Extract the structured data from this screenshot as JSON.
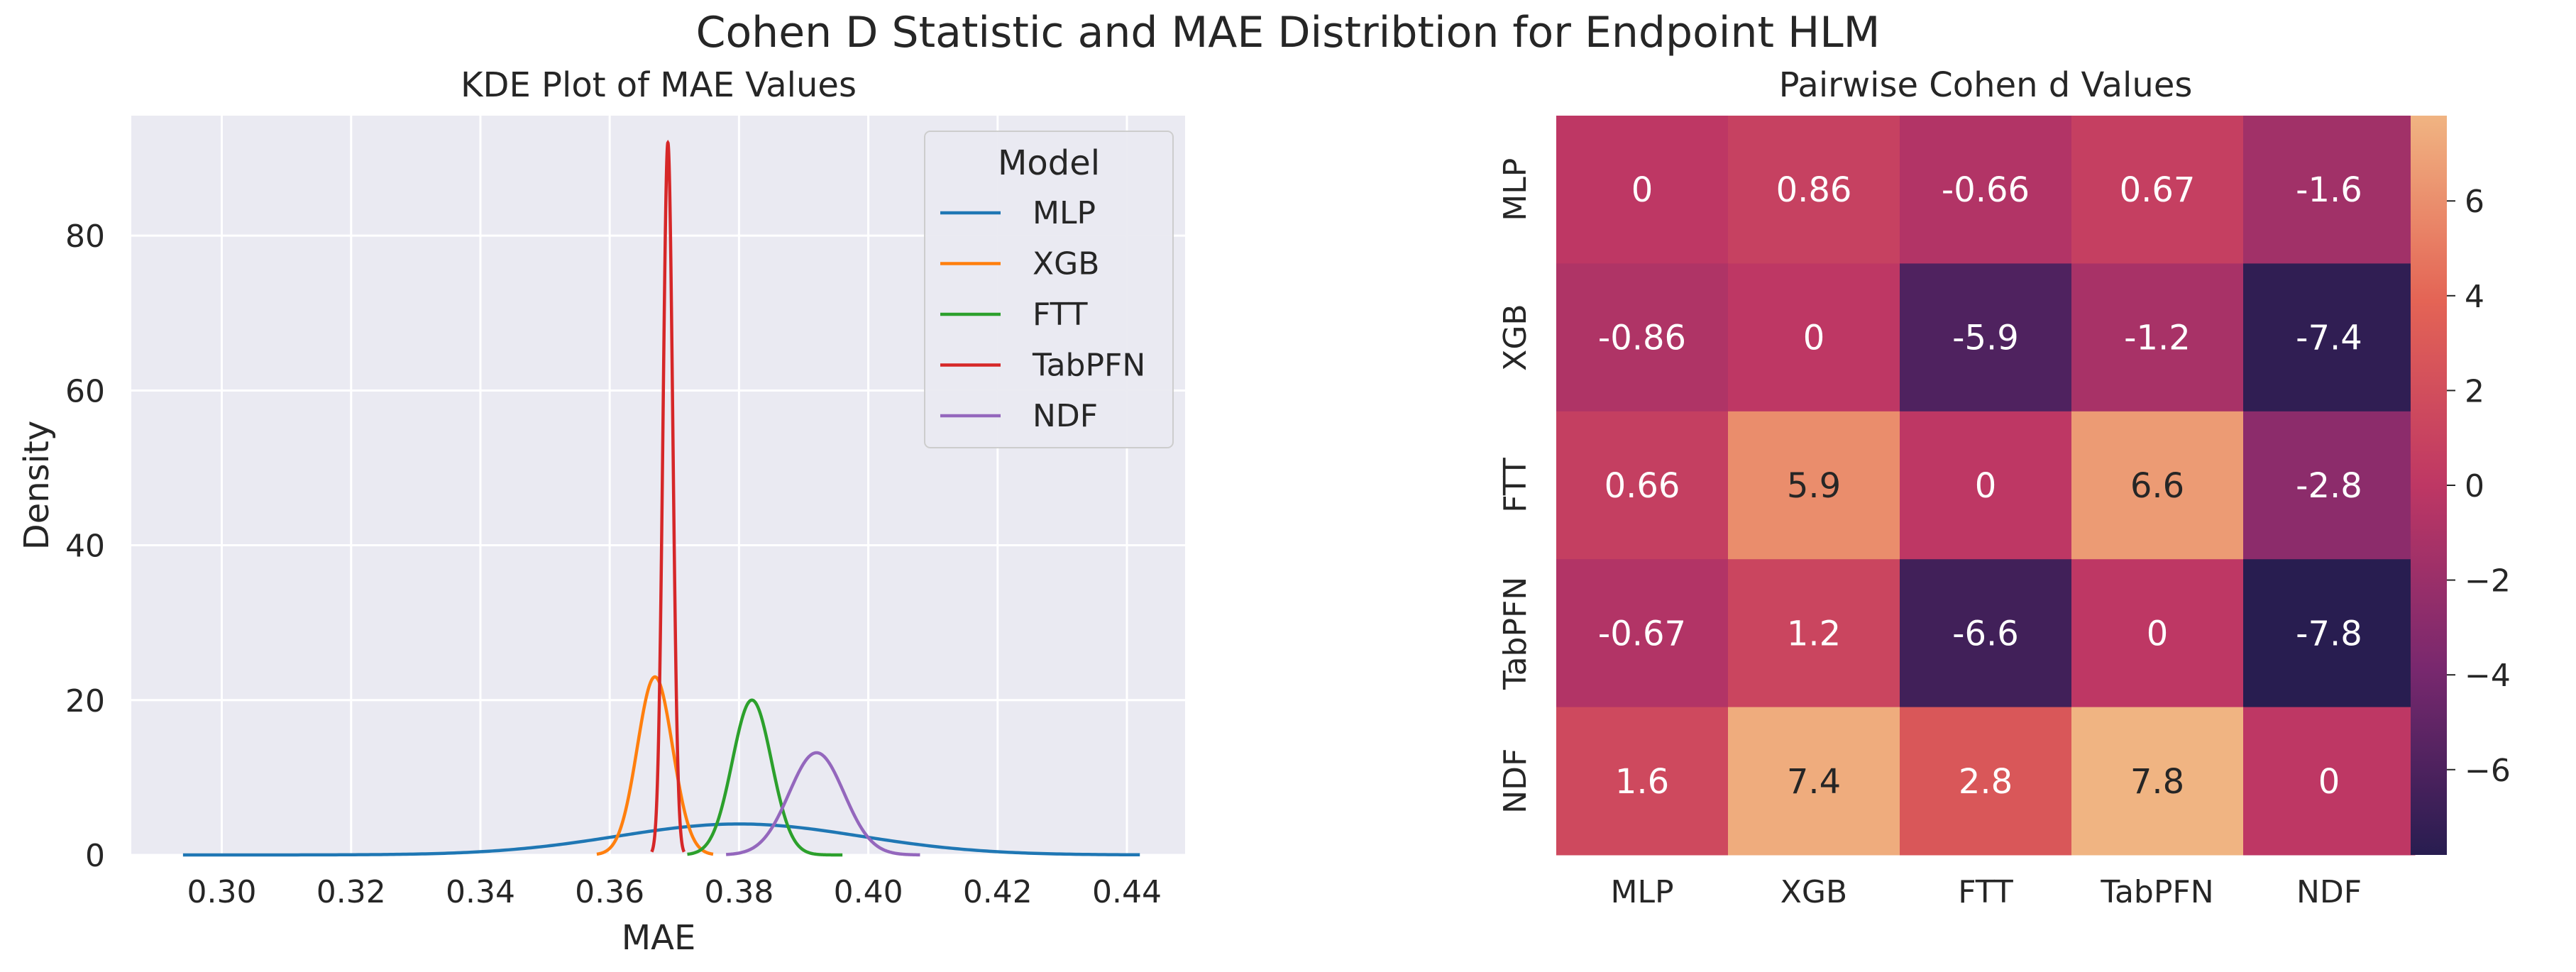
{
  "figure_title": "Cohen D Statistic and MAE Distribtion for Endpoint HLM",
  "chart_data": [
    {
      "type": "line",
      "title": "KDE Plot of MAE Values",
      "xlabel": "MAE",
      "ylabel": "Density",
      "xlim": [
        0.286,
        0.449
      ],
      "ylim": [
        0,
        95.5
      ],
      "xticks": [
        0.3,
        0.32,
        0.34,
        0.36,
        0.38,
        0.4,
        0.42,
        0.44
      ],
      "xtick_labels": [
        "0.30",
        "0.32",
        "0.34",
        "0.36",
        "0.38",
        "0.40",
        "0.42",
        "0.44"
      ],
      "yticks": [
        0,
        20,
        40,
        60,
        80
      ],
      "ytick_labels": [
        "0",
        "20",
        "40",
        "60",
        "80"
      ],
      "grid": true,
      "legend": {
        "title": "Model",
        "placement": "top-right"
      },
      "series": [
        {
          "name": "MLP",
          "color": "#1f77b4",
          "peak_x": 0.38,
          "peak_density": 4.0,
          "x_range": [
            0.294,
            0.442
          ]
        },
        {
          "name": "XGB",
          "color": "#ff7f0e",
          "peak_x": 0.367,
          "peak_density": 23.0,
          "x_range": [
            0.358,
            0.376
          ]
        },
        {
          "name": "FTT",
          "color": "#2ca02c",
          "peak_x": 0.382,
          "peak_density": 20.0,
          "x_range": [
            0.372,
            0.396
          ]
        },
        {
          "name": "TabPFN",
          "color": "#d62728",
          "peak_x": 0.369,
          "peak_density": 92.0,
          "x_range": [
            0.3665,
            0.3715
          ]
        },
        {
          "name": "NDF",
          "color": "#9467bd",
          "peak_x": 0.392,
          "peak_density": 13.2,
          "x_range": [
            0.378,
            0.408
          ]
        }
      ]
    },
    {
      "type": "heatmap",
      "title": "Pairwise Cohen d Values",
      "row_labels": [
        "MLP",
        "XGB",
        "FTT",
        "TabPFN",
        "NDF"
      ],
      "col_labels": [
        "MLP",
        "XGB",
        "FTT",
        "TabPFN",
        "NDF"
      ],
      "values": [
        [
          0,
          0.86,
          -0.66,
          0.67,
          -1.6
        ],
        [
          -0.86,
          0,
          -5.9,
          -1.2,
          -7.4
        ],
        [
          0.66,
          5.9,
          0,
          6.6,
          -2.8
        ],
        [
          -0.67,
          1.2,
          -6.6,
          0,
          -7.8
        ],
        [
          1.6,
          7.4,
          2.8,
          7.8,
          0
        ]
      ],
      "value_labels": [
        [
          "0",
          "0.86",
          "-0.66",
          "0.67",
          "-1.6"
        ],
        [
          "-0.86",
          "0",
          "-5.9",
          "-1.2",
          "-7.4"
        ],
        [
          "0.66",
          "5.9",
          "0",
          "6.6",
          "-2.8"
        ],
        [
          "-0.67",
          "1.2",
          "-6.6",
          "0",
          "-7.8"
        ],
        [
          "1.6",
          "7.4",
          "2.8",
          "7.8",
          "0"
        ]
      ],
      "vmin": -7.8,
      "vmax": 7.8,
      "colormap": "flare",
      "colorbar_ticks": [
        -6,
        -4,
        -2,
        0,
        2,
        4,
        6
      ],
      "colorbar_tick_labels": [
        "−6",
        "−4",
        "−2",
        "0",
        "2",
        "4",
        "6"
      ]
    }
  ]
}
